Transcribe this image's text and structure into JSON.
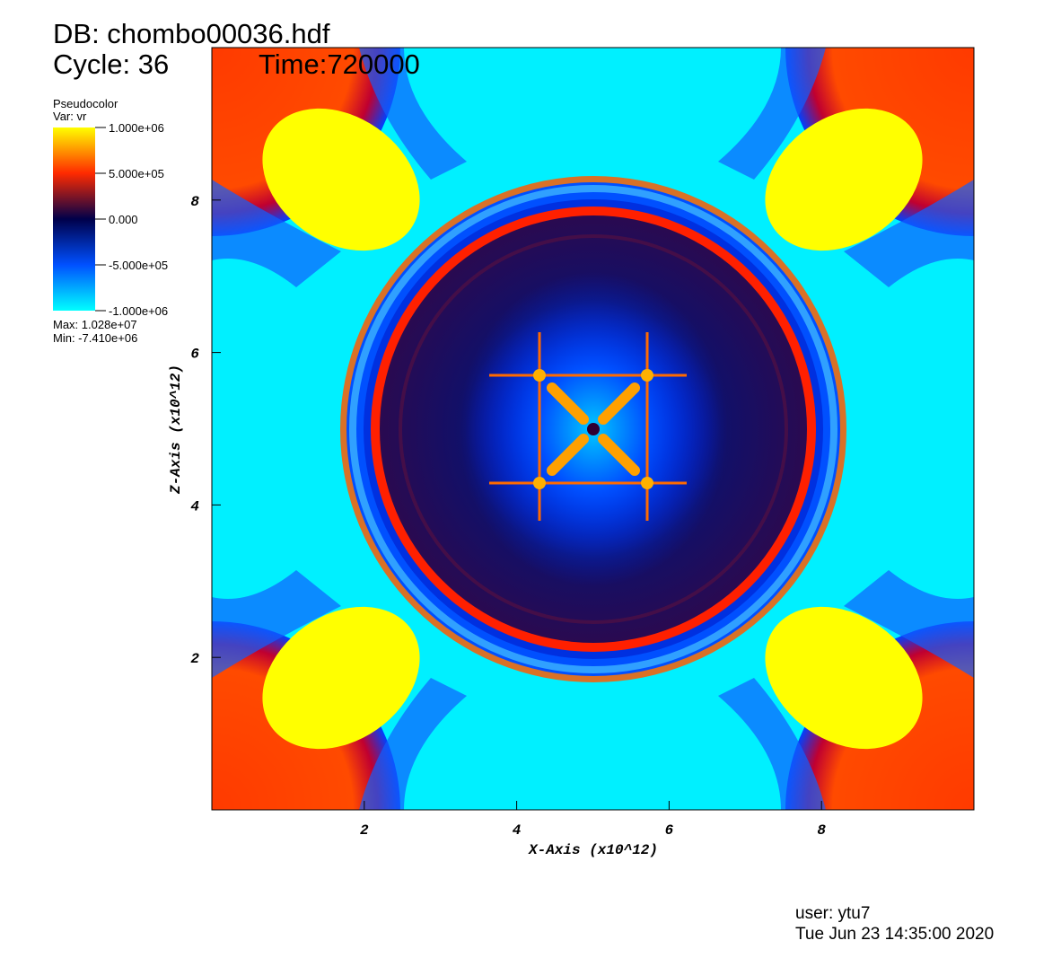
{
  "chart_data": {
    "type": "pseudocolor",
    "title": "DB: chombo00036.hdf",
    "cycle": "Cycle: 36",
    "time": "Time:720000",
    "xlabel": "X-Axis (x10^12)",
    "ylabel": "Z-Axis (x10^12)",
    "xlim": [
      0,
      10
    ],
    "ylim": [
      0,
      10
    ],
    "xticks": [
      2,
      4,
      6,
      8
    ],
    "yticks": [
      2,
      4,
      6,
      8
    ],
    "legend": {
      "plot": "Pseudocolor",
      "var": "Var: vr",
      "lim": [
        -1000000,
        1000000
      ],
      "ticks": [
        {
          "value": 1000000,
          "label": "1.000e+06"
        },
        {
          "value": 500000,
          "label": "5.000e+05"
        },
        {
          "value": 0,
          "label": "0.000"
        },
        {
          "value": -500000,
          "label": "-5.000e+05"
        },
        {
          "value": -1000000,
          "label": "-1.000e+06"
        }
      ],
      "colors": [
        "#00ffff",
        "#0050ff",
        "#00004a",
        "#ff2a00",
        "#ffff00"
      ],
      "max": "Max:  1.028e+07",
      "min": "Min: -7.410e+06"
    },
    "user": "user: ytu7",
    "date": "Tue Jun 23 14:35:00 2020"
  }
}
